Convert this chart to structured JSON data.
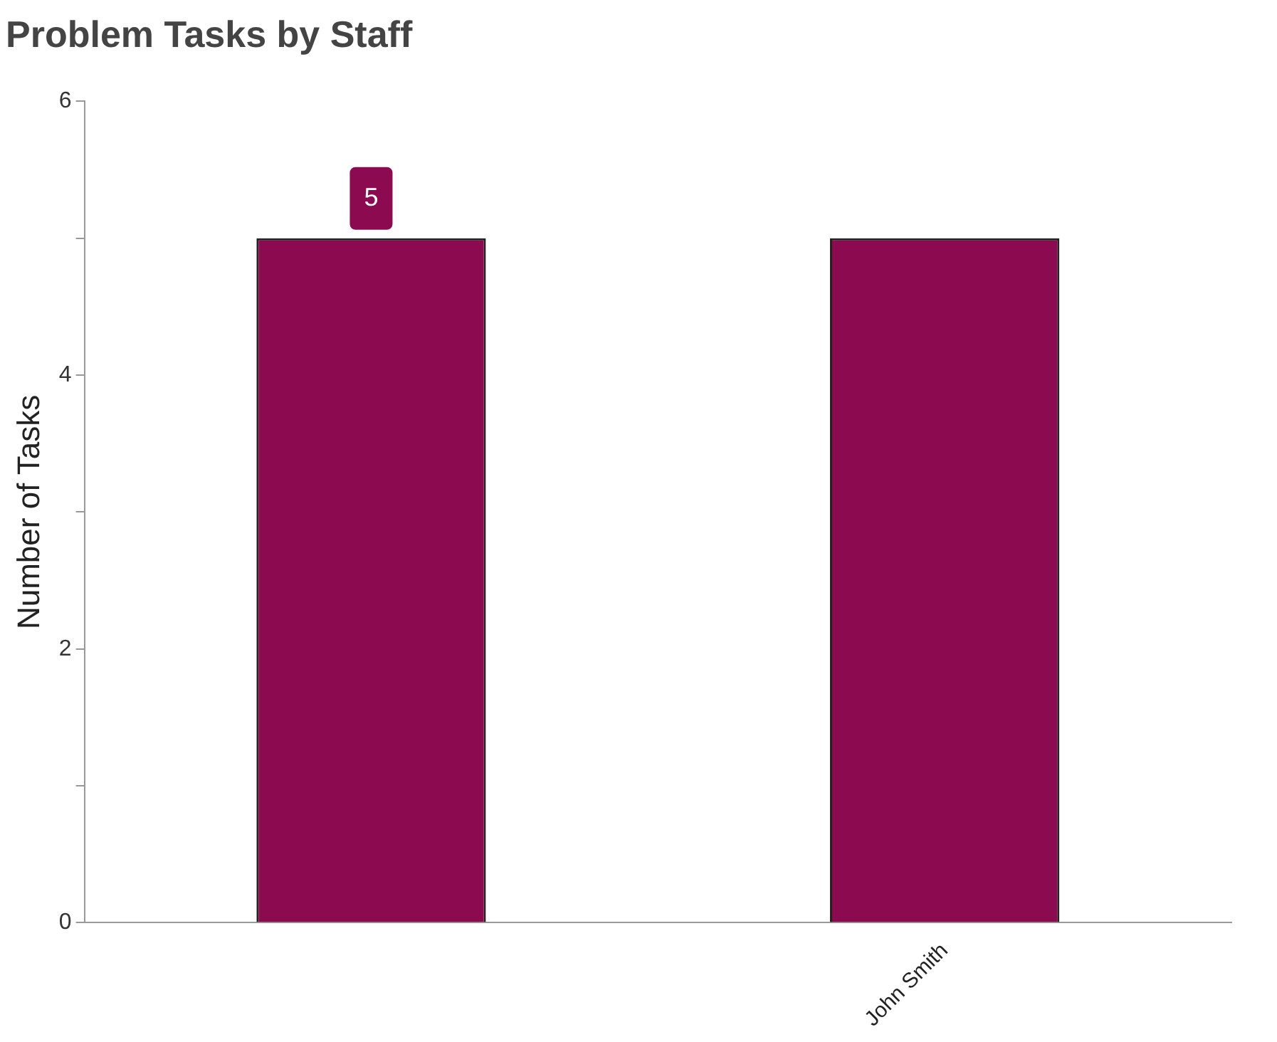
{
  "chart_data": {
    "type": "bar",
    "title": "Problem Tasks by Staff",
    "ylabel": "Number of Tasks",
    "categories": [
      null,
      "John Smith"
    ],
    "values": [
      5,
      5
    ],
    "color": "#8c0a4f",
    "value_labels": [
      "5",
      null
    ],
    "ylim": [
      0,
      6
    ],
    "yticks": [
      0,
      {
        "value": 1,
        "label": null
      },
      2,
      {
        "value": 3,
        "label": null
      },
      4,
      {
        "value": 5,
        "label": null
      },
      6
    ],
    "grid": false,
    "legend": false
  }
}
